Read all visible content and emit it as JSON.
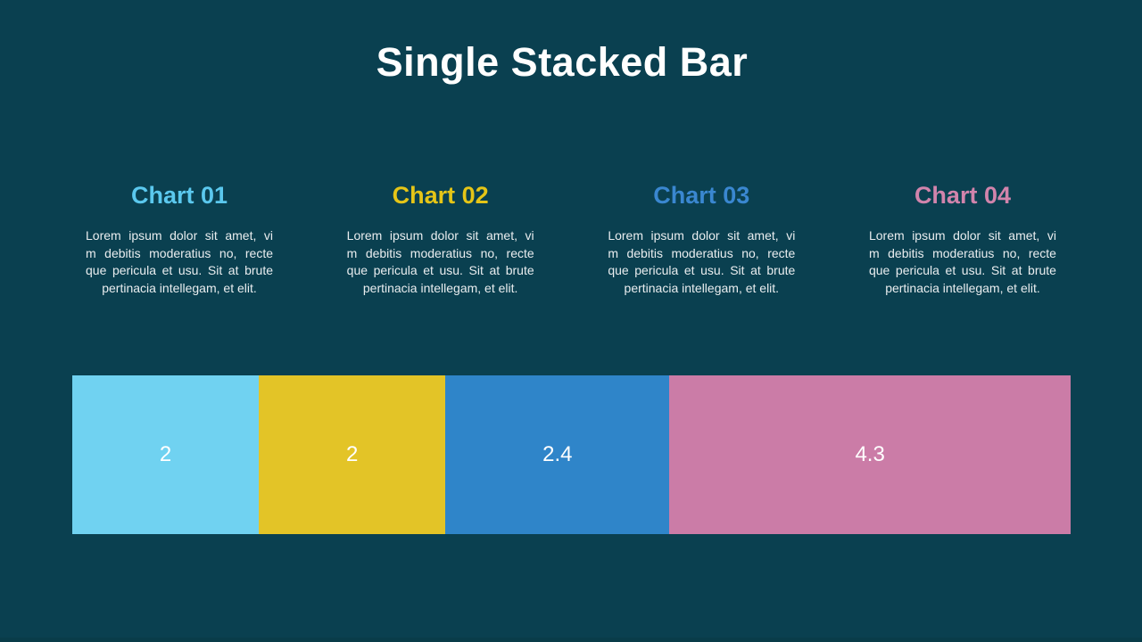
{
  "slide": {
    "title": "Single Stacked Bar",
    "background_color": "#0A4050",
    "title_color": "#FFFFFF"
  },
  "cards": [
    {
      "title": "Chart 01",
      "title_color": "#5BC8EE",
      "desc_lines": [
        "Lorem ipsum dolor sit amet, vi",
        "m debitis moderatius no, recte",
        "que pericula et usu. Sit at brute",
        "pertinacia intellegam, et elit."
      ]
    },
    {
      "title": "Chart 02",
      "title_color": "#E5C517",
      "desc_lines": [
        "Lorem ipsum dolor sit amet, vi",
        "m debitis moderatius no, recte",
        "que pericula et usu. Sit at brute",
        "pertinacia intellegam, et elit."
      ]
    },
    {
      "title": "Chart 03",
      "title_color": "#3A87D0",
      "desc_lines": [
        "Lorem ipsum dolor sit amet, vi",
        "m debitis moderatius no, recte",
        "que pericula et usu. Sit at brute",
        "pertinacia intellegam, et elit."
      ]
    },
    {
      "title": "Chart 04",
      "title_color": "#D184AC",
      "desc_lines": [
        "Lorem ipsum dolor sit amet, vi",
        "m debitis moderatius no, recte",
        "que pericula et usu. Sit at brute",
        "pertinacia intellegam, et elit."
      ]
    }
  ],
  "chart_data": {
    "type": "bar",
    "variant": "single-horizontal-stacked",
    "title": "Single Stacked Bar",
    "categories": [
      "Chart 01",
      "Chart 02",
      "Chart 03",
      "Chart 04"
    ],
    "values": [
      2,
      2,
      2.4,
      4.3
    ],
    "total": 10.7,
    "data_label_color": "#FFFFFF",
    "legend_position": "above",
    "grid": false,
    "segments": [
      {
        "label": "2",
        "value": 2,
        "color": "#70D2F1"
      },
      {
        "label": "2",
        "value": 2,
        "color": "#E3C427"
      },
      {
        "label": "2.4",
        "value": 2.4,
        "color": "#2F85C9"
      },
      {
        "label": "4.3",
        "value": 4.3,
        "color": "#CB7CA7"
      }
    ]
  }
}
